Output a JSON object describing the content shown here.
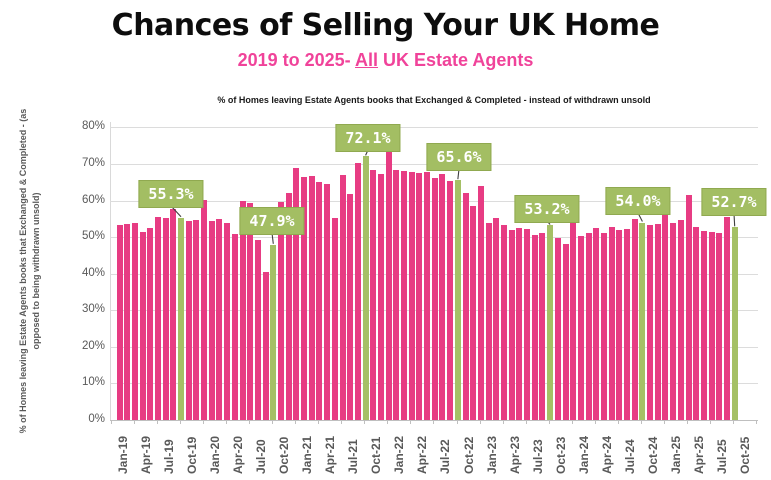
{
  "header": {
    "title": "Chances of Selling Your UK Home",
    "subtitle_prefix": "2019 to 2025- ",
    "subtitle_highlight": "All",
    "subtitle_suffix": " UK Estate Agents",
    "note": "% of Homes leaving Estate Agents books that Exchanged & Completed - instead of withdrawn unsold"
  },
  "y_axis_title": "% of Homes leaving Estate Agents books that Exchanged & Completed - (as opposed to being withdrawn unsold)",
  "chart_data": {
    "type": "bar",
    "title": "Chances of Selling Your UK Home",
    "subtitle": "2019 to 2025- All UK Estate Agents",
    "xlabel": "",
    "ylabel": "% of Homes leaving Estate Agents books that Exchanged & Completed - (as opposed to being withdrawn unsold)",
    "ylim": [
      0,
      80
    ],
    "grid": true,
    "bar_color": "#e73c83",
    "highlight_color": "#a5c065",
    "axis_text_color": "#595959",
    "x": [
      "Jan-19",
      "Feb-19",
      "Mar-19",
      "Apr-19",
      "May-19",
      "Jun-19",
      "Jul-19",
      "Aug-19",
      "Sep-19",
      "Oct-19",
      "Nov-19",
      "Dec-19",
      "Jan-20",
      "Feb-20",
      "Mar-20",
      "Apr-20",
      "May-20",
      "Jun-20",
      "Jul-20",
      "Aug-20",
      "Sep-20",
      "Oct-20",
      "Nov-20",
      "Dec-20",
      "Jan-21",
      "Feb-21",
      "Mar-21",
      "Apr-21",
      "May-21",
      "Jun-21",
      "Jul-21",
      "Aug-21",
      "Sep-21",
      "Oct-21",
      "Nov-21",
      "Dec-21",
      "Jan-22",
      "Feb-22",
      "Mar-22",
      "Apr-22",
      "May-22",
      "Jun-22",
      "Jul-22",
      "Aug-22",
      "Sep-22",
      "Oct-22",
      "Nov-22",
      "Dec-22",
      "Jan-23",
      "Feb-23",
      "Mar-23",
      "Apr-23",
      "May-23",
      "Jun-23",
      "Jul-23",
      "Aug-23",
      "Sep-23",
      "Oct-23",
      "Nov-23",
      "Dec-23",
      "Jan-24",
      "Feb-24",
      "Mar-24",
      "Apr-24",
      "May-24",
      "Jun-24",
      "Jul-24",
      "Aug-24",
      "Sep-24",
      "Oct-24",
      "Nov-24",
      "Dec-24",
      "Jan-25",
      "Feb-25",
      "Mar-25",
      "Apr-25",
      "May-25",
      "Jun-25",
      "Jul-25",
      "Aug-25",
      "Sep-25"
    ],
    "values": [
      53.2,
      53.6,
      53.8,
      51.5,
      52.6,
      55.4,
      55.2,
      57.7,
      55.3,
      54.4,
      54.6,
      60.3,
      54.4,
      54.9,
      53.9,
      51.0,
      60.0,
      59.4,
      49.2,
      40.5,
      47.9,
      59.5,
      62.0,
      68.8,
      66.4,
      66.6,
      65.1,
      64.6,
      55.3,
      66.9,
      61.7,
      70.2,
      72.1,
      68.4,
      67.3,
      73.5,
      68.4,
      68.2,
      67.7,
      67.5,
      67.9,
      66.2,
      67.3,
      65.3,
      65.6,
      62.0,
      58.4,
      64.1,
      53.9,
      55.3,
      53.2,
      52.0,
      52.5,
      52.3,
      50.5,
      51.1,
      53.2,
      49.7,
      48.2,
      57.1,
      50.3,
      51.1,
      52.5,
      51.1,
      52.9,
      52.0,
      52.2,
      55.0,
      54.0,
      53.2,
      53.5,
      61.5,
      53.8,
      54.7,
      61.5,
      52.9,
      51.6,
      51.4,
      51.1,
      55.5,
      52.7
    ],
    "highlights": [
      {
        "index": 8,
        "label": "55.3%"
      },
      {
        "index": 20,
        "label": "47.9%"
      },
      {
        "index": 32,
        "label": "72.1%"
      },
      {
        "index": 44,
        "label": "65.6%"
      },
      {
        "index": 56,
        "label": "53.2%"
      },
      {
        "index": 68,
        "label": "54.0%"
      },
      {
        "index": 80,
        "label": "52.7%"
      }
    ],
    "y_ticks": [
      "0%",
      "10%",
      "20%",
      "30%",
      "40%",
      "50%",
      "60%",
      "70%",
      "80%"
    ],
    "x_tick_labels": [
      "Jan-19",
      "Apr-19",
      "Jul-19",
      "Oct-19",
      "Jan-20",
      "Apr-20",
      "Jul-20",
      "Oct-20",
      "Jan-21",
      "Apr-21",
      "Jul-21",
      "Oct-21",
      "Jan-22",
      "Apr-22",
      "Jul-22",
      "Oct-22",
      "Jan-23",
      "Apr-23",
      "Jul-23",
      "Oct-23",
      "Jan-24",
      "Apr-24",
      "Jul-24",
      "Oct-24",
      "Jan-25",
      "Apr-25",
      "Jul-25",
      "Oct-25"
    ],
    "legend_position": "none"
  }
}
